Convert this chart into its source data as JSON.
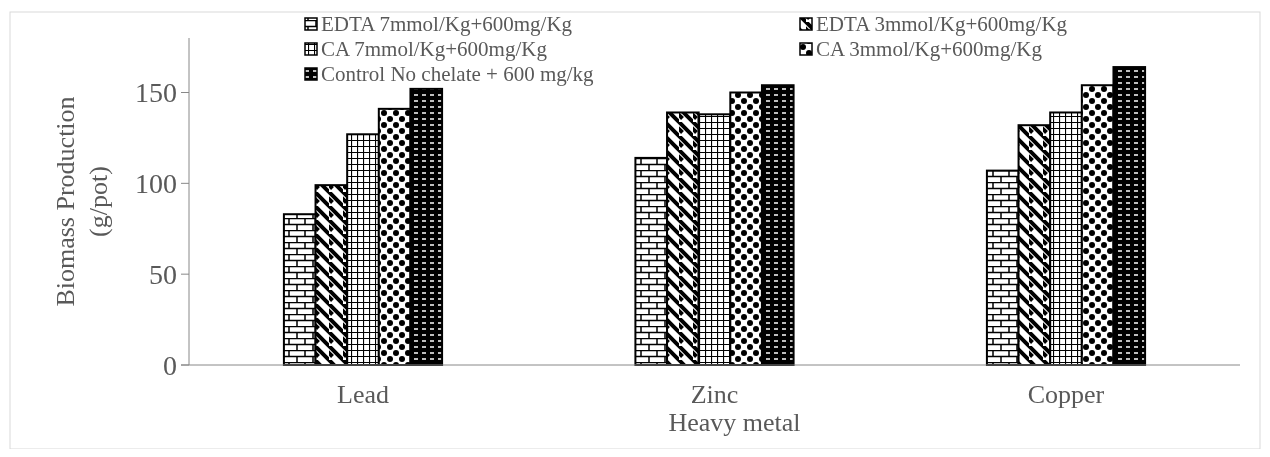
{
  "chart_data": {
    "type": "bar",
    "xlabel": "Heavy metal",
    "ylabel": "Biomass Production (g/pot)",
    "categories": [
      "Lead",
      "Zinc",
      "Copper"
    ],
    "series": [
      {
        "name": "EDTA 7mmol/Kg+600mg/Kg",
        "color": "#000000",
        "values": [
          83,
          114,
          107
        ]
      },
      {
        "name": "EDTA 3mmol/Kg+600mg/Kg",
        "color": "#000000",
        "values": [
          99,
          139,
          132
        ]
      },
      {
        "name": "CA 7mmol/Kg+600mg/Kg",
        "color": "#000000",
        "values": [
          127,
          138,
          139
        ]
      },
      {
        "name": "CA 3mmol/Kg+600mg/Kg",
        "color": "#000000",
        "values": [
          141,
          150,
          154
        ]
      },
      {
        "name": "Control No chelate + 600 mg/kg",
        "color": "#000000",
        "values": [
          152,
          154,
          164
        ]
      }
    ],
    "ylim": [
      0,
      180
    ],
    "yticks": [
      0,
      50,
      100,
      150
    ],
    "grid": false,
    "legend": "top"
  }
}
